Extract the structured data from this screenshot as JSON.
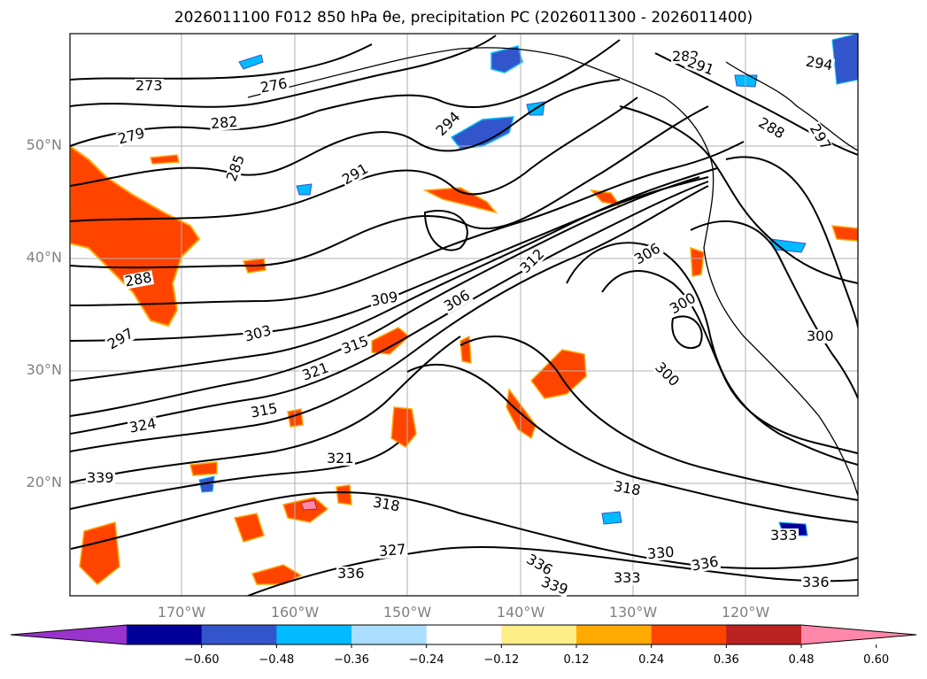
{
  "title": "2026011100 F012 850 hPa θe, precipitation PC (2026011300 - 2026011400)",
  "lat_labels": [
    "50°N",
    "40°N",
    "30°N",
    "20°N"
  ],
  "lon_labels": [
    "170°W",
    "160°W",
    "150°W",
    "140°W",
    "130°W",
    "120°W"
  ],
  "contour_labels": [
    "273",
    "276",
    "279",
    "282",
    "285",
    "288",
    "291",
    "294",
    "297",
    "300",
    "303",
    "306",
    "309",
    "312",
    "315",
    "318",
    "321",
    "324",
    "327",
    "330",
    "333",
    "336",
    "339"
  ],
  "colorbar": {
    "colors": [
      "#9933cc",
      "#000099",
      "#3355cc",
      "#00bbff",
      "#aaddff",
      "#ffffff",
      "#ffee88",
      "#ffaa00",
      "#ff4400",
      "#bb2222",
      "#ff88aa"
    ],
    "tick_labels": [
      "−0.60",
      "−0.48",
      "−0.36",
      "−0.24",
      "−0.12",
      "0.12",
      "0.24",
      "0.36",
      "0.48",
      "0.60"
    ],
    "extend": "both"
  }
}
